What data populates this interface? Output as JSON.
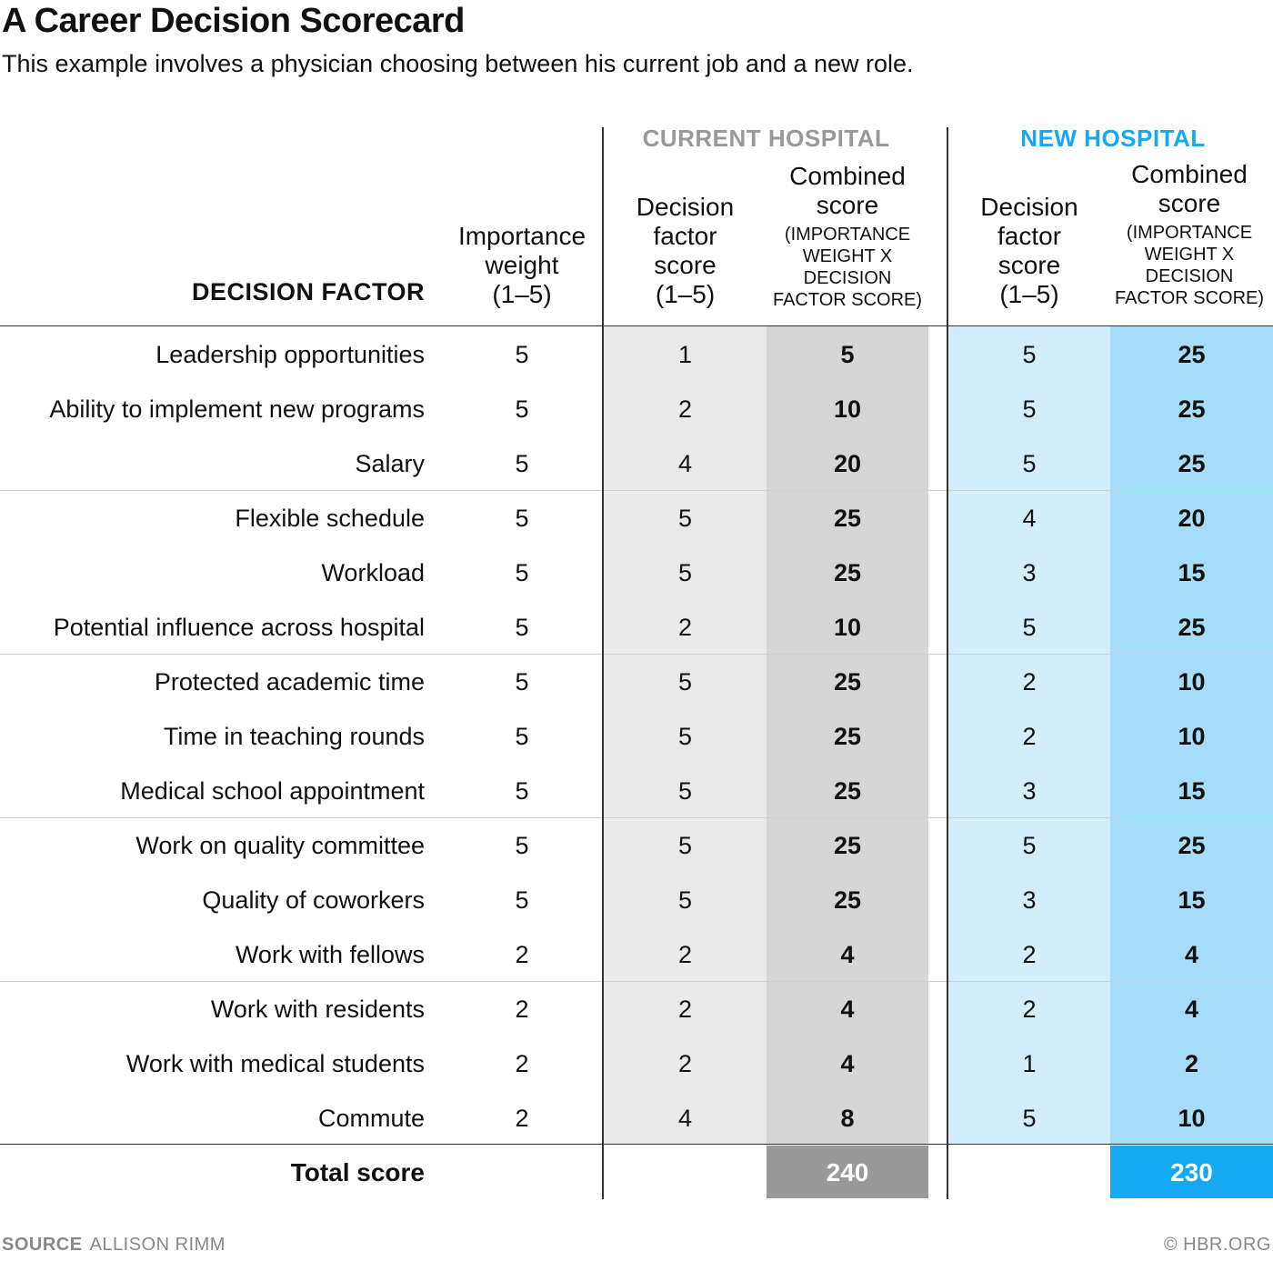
{
  "title": "A Career Decision Scorecard",
  "subtitle": "This example involves a physician choosing between his current job and a new role.",
  "colors": {
    "current_light": "#e9e9e9",
    "current_dark": "#d6d6d6",
    "current_total": "#999999",
    "current_header": "#999999",
    "new_light": "#d2edfc",
    "new_dark": "#a6dcf8",
    "new_total": "#14a9f0",
    "new_header": "#14a9f0"
  },
  "headers": {
    "decision_factor": "DECISION FACTOR",
    "importance": [
      "Importance",
      "weight",
      "(1–5)"
    ],
    "current_group": "CURRENT HOSPITAL",
    "new_group": "NEW HOSPITAL",
    "factor_score": [
      "Decision",
      "factor",
      "score",
      "(1–5)"
    ],
    "combined": [
      "Combined",
      "score"
    ],
    "combined_sub": [
      "(IMPORTANCE",
      "WEIGHT X",
      "DECISION",
      "FACTOR SCORE)"
    ]
  },
  "chart_data": {
    "type": "table",
    "columns": [
      "Decision factor",
      "Importance weight (1–5)",
      "Current hospital: Decision factor score (1–5)",
      "Current hospital: Combined score",
      "New hospital: Decision factor score (1–5)",
      "New hospital: Combined score"
    ],
    "rows": [
      {
        "factor": "Leadership opportunities",
        "weight": 5,
        "cur_score": 1,
        "cur_combined": 5,
        "new_score": 5,
        "new_combined": 25
      },
      {
        "factor": "Ability to implement new programs",
        "weight": 5,
        "cur_score": 2,
        "cur_combined": 10,
        "new_score": 5,
        "new_combined": 25
      },
      {
        "factor": "Salary",
        "weight": 5,
        "cur_score": 4,
        "cur_combined": 20,
        "new_score": 5,
        "new_combined": 25
      },
      {
        "factor": "Flexible schedule",
        "weight": 5,
        "cur_score": 5,
        "cur_combined": 25,
        "new_score": 4,
        "new_combined": 20
      },
      {
        "factor": "Workload",
        "weight": 5,
        "cur_score": 5,
        "cur_combined": 25,
        "new_score": 3,
        "new_combined": 15
      },
      {
        "factor": "Potential influence across hospital",
        "weight": 5,
        "cur_score": 2,
        "cur_combined": 10,
        "new_score": 5,
        "new_combined": 25
      },
      {
        "factor": "Protected academic time",
        "weight": 5,
        "cur_score": 5,
        "cur_combined": 25,
        "new_score": 2,
        "new_combined": 10
      },
      {
        "factor": "Time in teaching rounds",
        "weight": 5,
        "cur_score": 5,
        "cur_combined": 25,
        "new_score": 2,
        "new_combined": 10
      },
      {
        "factor": "Medical school appointment",
        "weight": 5,
        "cur_score": 5,
        "cur_combined": 25,
        "new_score": 3,
        "new_combined": 15
      },
      {
        "factor": "Work on quality committee",
        "weight": 5,
        "cur_score": 5,
        "cur_combined": 25,
        "new_score": 5,
        "new_combined": 25
      },
      {
        "factor": "Quality of coworkers",
        "weight": 5,
        "cur_score": 5,
        "cur_combined": 25,
        "new_score": 3,
        "new_combined": 15
      },
      {
        "factor": "Work with fellows",
        "weight": 2,
        "cur_score": 2,
        "cur_combined": 4,
        "new_score": 2,
        "new_combined": 4
      },
      {
        "factor": "Work with residents",
        "weight": 2,
        "cur_score": 2,
        "cur_combined": 4,
        "new_score": 2,
        "new_combined": 4
      },
      {
        "factor": "Work with medical students",
        "weight": 2,
        "cur_score": 2,
        "cur_combined": 4,
        "new_score": 1,
        "new_combined": 2
      },
      {
        "factor": "Commute",
        "weight": 2,
        "cur_score": 4,
        "cur_combined": 8,
        "new_score": 5,
        "new_combined": 10
      }
    ],
    "total_label": "Total score",
    "current_total": "240",
    "new_total": "230"
  },
  "source_label": "SOURCE",
  "source_text": "ALLISON RIMM",
  "credit": "© HBR.ORG"
}
